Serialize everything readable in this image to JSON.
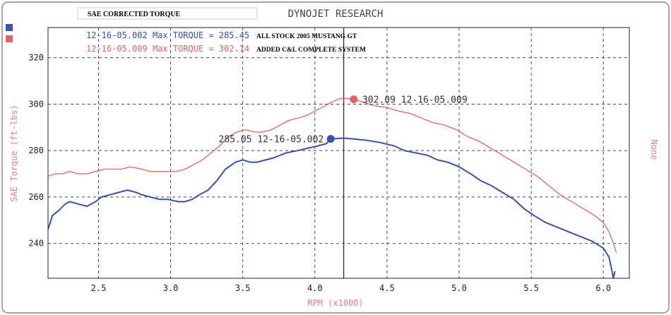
{
  "header": {
    "left_title": "SAE CORRECTED TORQUE",
    "center_title": "DYNOJET RESEARCH"
  },
  "legend": [
    {
      "run": "12-16-05.002",
      "max_text": "Max TORQUE = 285.45",
      "description": "ALL STOCK 2005 MUSTANG GT",
      "color": "#3a52a8"
    },
    {
      "run": "12-16-05.009",
      "max_text": "Max TORQUE = 302.14",
      "description": "ADDED C&L COMPLETE SYSTEM",
      "color": "#e06464"
    }
  ],
  "markers": [
    {
      "label": "285.05 12-16-05.002",
      "x": 4.11,
      "y": 285.05,
      "color": "#3a52a8"
    },
    {
      "label": "302.09 12-16-05.009",
      "x": 4.27,
      "y": 302.09,
      "color": "#e06464"
    }
  ],
  "cursor_x": 4.2,
  "axes": {
    "y_label": "SAE Torque (ft-lbs)",
    "x_label": "RPM (x1000)",
    "right_label": "None",
    "x_ticks": [
      "2.5",
      "3.0",
      "3.5",
      "4.0",
      "4.5",
      "5.0",
      "5.5",
      "6.0"
    ],
    "y_ticks": [
      "240",
      "260",
      "280",
      "300",
      "320"
    ]
  },
  "chart_data": {
    "type": "line",
    "title": "DYNOJET RESEARCH",
    "xlabel": "RPM (x1000)",
    "ylabel": "SAE Torque (ft-lbs)",
    "xlim": [
      2.15,
      6.18
    ],
    "ylim": [
      225,
      333
    ],
    "grid": true,
    "series": [
      {
        "name": "12-16-05.002",
        "color": "#3a52a8",
        "x": [
          2.15,
          2.18,
          2.22,
          2.27,
          2.3,
          2.36,
          2.42,
          2.48,
          2.52,
          2.58,
          2.64,
          2.7,
          2.76,
          2.8,
          2.86,
          2.92,
          2.98,
          3.05,
          3.1,
          3.15,
          3.2,
          3.26,
          3.32,
          3.38,
          3.45,
          3.5,
          3.55,
          3.6,
          3.66,
          3.72,
          3.8,
          3.88,
          3.95,
          4.02,
          4.08,
          4.11,
          4.15,
          4.2,
          4.27,
          4.35,
          4.45,
          4.55,
          4.62,
          4.7,
          4.78,
          4.85,
          4.92,
          5.0,
          5.08,
          5.15,
          5.22,
          5.3,
          5.38,
          5.45,
          5.52,
          5.6,
          5.68,
          5.76,
          5.84,
          5.92,
          6.0,
          6.04,
          6.06,
          6.07,
          6.08
        ],
        "y": [
          246,
          252,
          254,
          257,
          258,
          257,
          256,
          258,
          260,
          261,
          262,
          263,
          262,
          261,
          260,
          259,
          259,
          258,
          258,
          259,
          261,
          263,
          267,
          272,
          275,
          276,
          275,
          275,
          276,
          277,
          279,
          280,
          281,
          282,
          283,
          285.05,
          285.2,
          285.4,
          285,
          284.5,
          283.5,
          282,
          280,
          279,
          278,
          276,
          275,
          273,
          270,
          267,
          265,
          262,
          259,
          255,
          252,
          249,
          247,
          245,
          243,
          241,
          238,
          234,
          228,
          225,
          228
        ]
      },
      {
        "name": "12-16-05.009",
        "color": "#e06464",
        "x": [
          2.15,
          2.2,
          2.25,
          2.3,
          2.36,
          2.42,
          2.48,
          2.54,
          2.6,
          2.66,
          2.72,
          2.8,
          2.86,
          2.92,
          2.98,
          3.04,
          3.1,
          3.16,
          3.22,
          3.28,
          3.34,
          3.4,
          3.46,
          3.52,
          3.58,
          3.64,
          3.7,
          3.76,
          3.82,
          3.88,
          3.94,
          4.0,
          4.06,
          4.12,
          4.18,
          4.22,
          4.27,
          4.33,
          4.4,
          4.5,
          4.58,
          4.66,
          4.74,
          4.82,
          4.9,
          4.98,
          5.06,
          5.14,
          5.22,
          5.3,
          5.38,
          5.46,
          5.54,
          5.62,
          5.7,
          5.78,
          5.86,
          5.94,
          6.0,
          6.04,
          6.07,
          6.09
        ],
        "y": [
          269,
          270,
          270,
          271,
          270,
          270,
          271,
          272,
          272,
          272,
          273,
          272,
          271,
          271,
          271,
          271,
          272,
          274,
          276,
          279,
          282,
          286,
          288,
          289,
          288,
          288,
          289,
          291,
          293,
          294,
          295,
          297,
          299,
          301,
          302.5,
          302.5,
          302.09,
          301,
          299.5,
          298.5,
          297,
          296,
          294,
          292,
          291,
          289,
          286,
          284,
          281,
          278,
          275,
          272,
          269,
          265,
          261,
          258,
          255,
          252,
          249,
          245,
          240,
          236
        ]
      }
    ]
  }
}
